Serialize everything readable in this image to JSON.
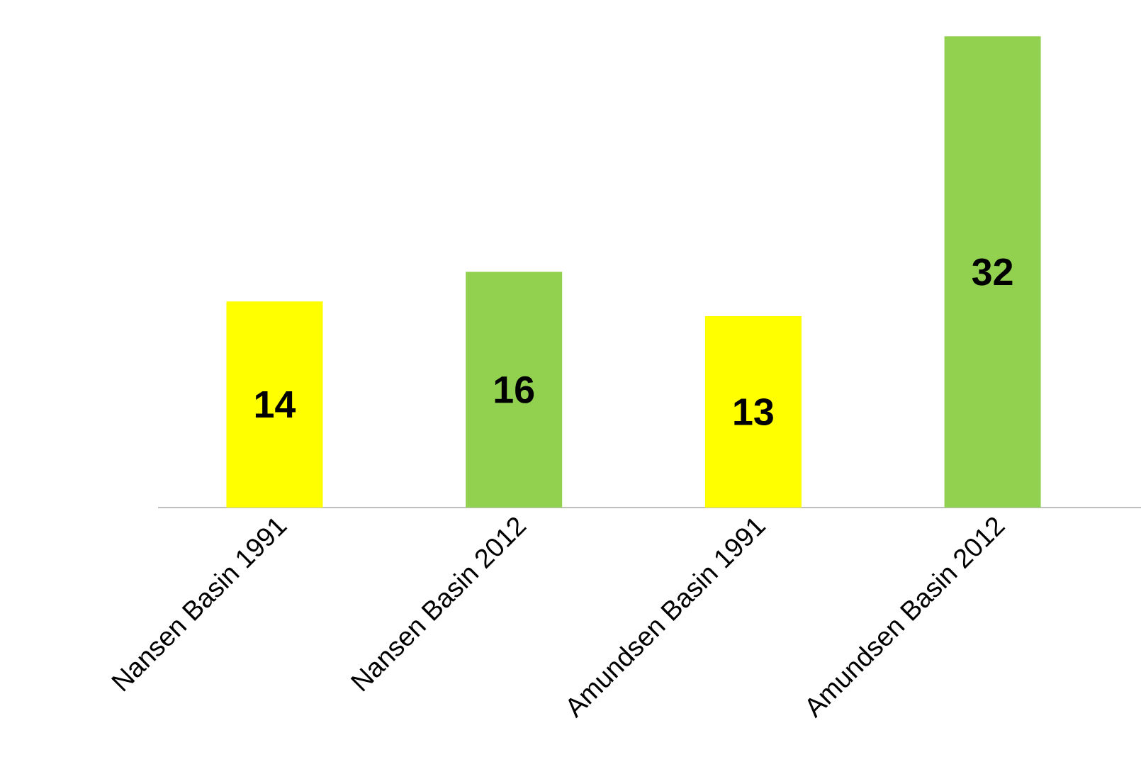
{
  "chart_data": {
    "type": "bar",
    "categories": [
      "Nansen Basin  1991",
      "Nansen Basin  2012",
      "Amundsen Basin  1991",
      "Amundsen Basin  2012"
    ],
    "values": [
      14,
      16,
      13,
      32
    ],
    "colors": [
      "#ffff00",
      "#92d050",
      "#ffff00",
      "#92d050"
    ],
    "data_labels": true
  }
}
